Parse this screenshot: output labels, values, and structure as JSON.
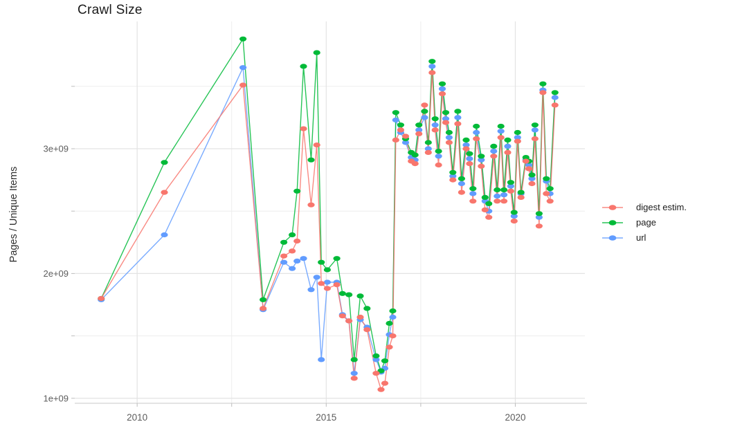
{
  "title": "Crawl Size",
  "y_axis_title": "Pages / Unique Items",
  "legend": {
    "items": [
      "digest estim.",
      "page",
      "url"
    ]
  },
  "colors": {
    "digest": "#F8766D",
    "page": "#00BA38",
    "url": "#619CFF",
    "grid_major": "#E3E3E3",
    "grid_minor": "#EDEDED",
    "axis_line": "#D2D2D2",
    "tick_mark": "#BDBDBD",
    "tick_label": "#5C5C5C"
  },
  "chart_data": {
    "type": "line",
    "title": "Crawl Size",
    "xlabel": "",
    "ylabel": "Pages / Unique Items",
    "x_unit": "crawl date (decimal year)",
    "value_unit": "items, values listed in billions (1e9)",
    "xlim": [
      2008.35,
      2021.84
    ],
    "ylim": [
      0.96,
      4.02
    ],
    "grid": true,
    "legend_position": "right",
    "x_major_ticks": [
      {
        "value": 2010,
        "label": "2010"
      },
      {
        "value": 2015,
        "label": "2015"
      },
      {
        "value": 2020,
        "label": "2020"
      }
    ],
    "x_minor_gridlines": [
      2012.5,
      2017.5
    ],
    "y_major_ticks": [
      {
        "value": 1,
        "label": "1e+09"
      },
      {
        "value": 2,
        "label": "2e+09"
      },
      {
        "value": 3,
        "label": "3e+09"
      }
    ],
    "y_minor_gridlines": [
      1.5,
      2.5,
      3.5
    ],
    "x": [
      2009.05,
      2010.72,
      2012.8,
      2013.33,
      2013.88,
      2014.1,
      2014.23,
      2014.4,
      2014.6,
      2014.75,
      2014.87,
      2015.03,
      2015.28,
      2015.43,
      2015.6,
      2015.74,
      2015.9,
      2016.08,
      2016.32,
      2016.45,
      2016.55,
      2016.67,
      2016.76,
      2016.84,
      2016.97,
      2017.1,
      2017.25,
      2017.35,
      2017.45,
      2017.6,
      2017.7,
      2017.8,
      2017.88,
      2017.97,
      2018.07,
      2018.16,
      2018.25,
      2018.35,
      2018.48,
      2018.58,
      2018.7,
      2018.79,
      2018.88,
      2018.97,
      2019.1,
      2019.2,
      2019.3,
      2019.43,
      2019.52,
      2019.62,
      2019.7,
      2019.8,
      2019.88,
      2019.97,
      2020.06,
      2020.15,
      2020.28,
      2020.36,
      2020.44,
      2020.52,
      2020.63,
      2020.73,
      2020.82,
      2020.92,
      2021.05
    ],
    "series": [
      {
        "name": "digest estim.",
        "color": "#F8766D",
        "values": [
          1.8,
          2.65,
          3.51,
          1.72,
          2.14,
          2.18,
          2.26,
          3.16,
          2.55,
          3.03,
          1.92,
          1.88,
          1.91,
          1.66,
          1.62,
          1.16,
          1.65,
          1.55,
          1.2,
          1.07,
          1.12,
          1.41,
          1.5,
          3.07,
          3.15,
          3.1,
          2.9,
          2.88,
          3.12,
          3.35,
          2.97,
          3.61,
          3.15,
          2.87,
          3.44,
          3.21,
          3.05,
          2.75,
          3.2,
          2.65,
          3.0,
          2.88,
          2.58,
          3.08,
          2.86,
          2.51,
          2.45,
          2.94,
          2.58,
          3.09,
          2.58,
          2.97,
          2.66,
          2.42,
          3.06,
          2.61,
          2.9,
          2.84,
          2.72,
          3.08,
          2.38,
          3.45,
          2.64,
          2.58,
          3.35
        ]
      },
      {
        "name": "page",
        "color": "#00BA38",
        "values": [
          1.8,
          2.89,
          3.88,
          1.79,
          2.25,
          2.31,
          2.66,
          3.66,
          2.91,
          3.77,
          2.09,
          2.03,
          2.12,
          1.84,
          1.83,
          1.31,
          1.82,
          1.72,
          1.34,
          1.22,
          1.3,
          1.6,
          1.7,
          3.29,
          3.19,
          3.08,
          2.97,
          2.95,
          3.19,
          3.3,
          3.05,
          3.7,
          3.24,
          2.98,
          3.52,
          3.29,
          3.13,
          2.81,
          3.3,
          2.76,
          3.07,
          2.96,
          2.68,
          3.18,
          2.94,
          2.61,
          2.56,
          3.02,
          2.67,
          3.18,
          2.67,
          3.07,
          2.73,
          2.49,
          3.13,
          2.65,
          2.93,
          2.9,
          2.79,
          3.19,
          2.48,
          3.52,
          2.76,
          2.68,
          3.45
        ]
      },
      {
        "name": "url",
        "color": "#619CFF",
        "values": [
          1.79,
          2.31,
          3.65,
          1.71,
          2.09,
          2.04,
          2.1,
          2.12,
          1.87,
          1.97,
          1.31,
          1.93,
          1.93,
          1.67,
          1.62,
          1.2,
          1.63,
          1.57,
          1.31,
          1.21,
          1.24,
          1.51,
          1.65,
          3.23,
          3.13,
          3.05,
          2.93,
          2.91,
          3.15,
          3.25,
          3.0,
          3.66,
          3.19,
          2.94,
          3.48,
          3.24,
          3.09,
          2.78,
          3.25,
          2.72,
          3.03,
          2.92,
          2.64,
          3.13,
          2.91,
          2.58,
          2.5,
          2.98,
          2.62,
          3.14,
          2.63,
          3.02,
          2.7,
          2.46,
          3.09,
          2.64,
          2.91,
          2.87,
          2.76,
          3.15,
          2.45,
          3.47,
          2.74,
          2.64,
          3.41
        ]
      }
    ]
  }
}
